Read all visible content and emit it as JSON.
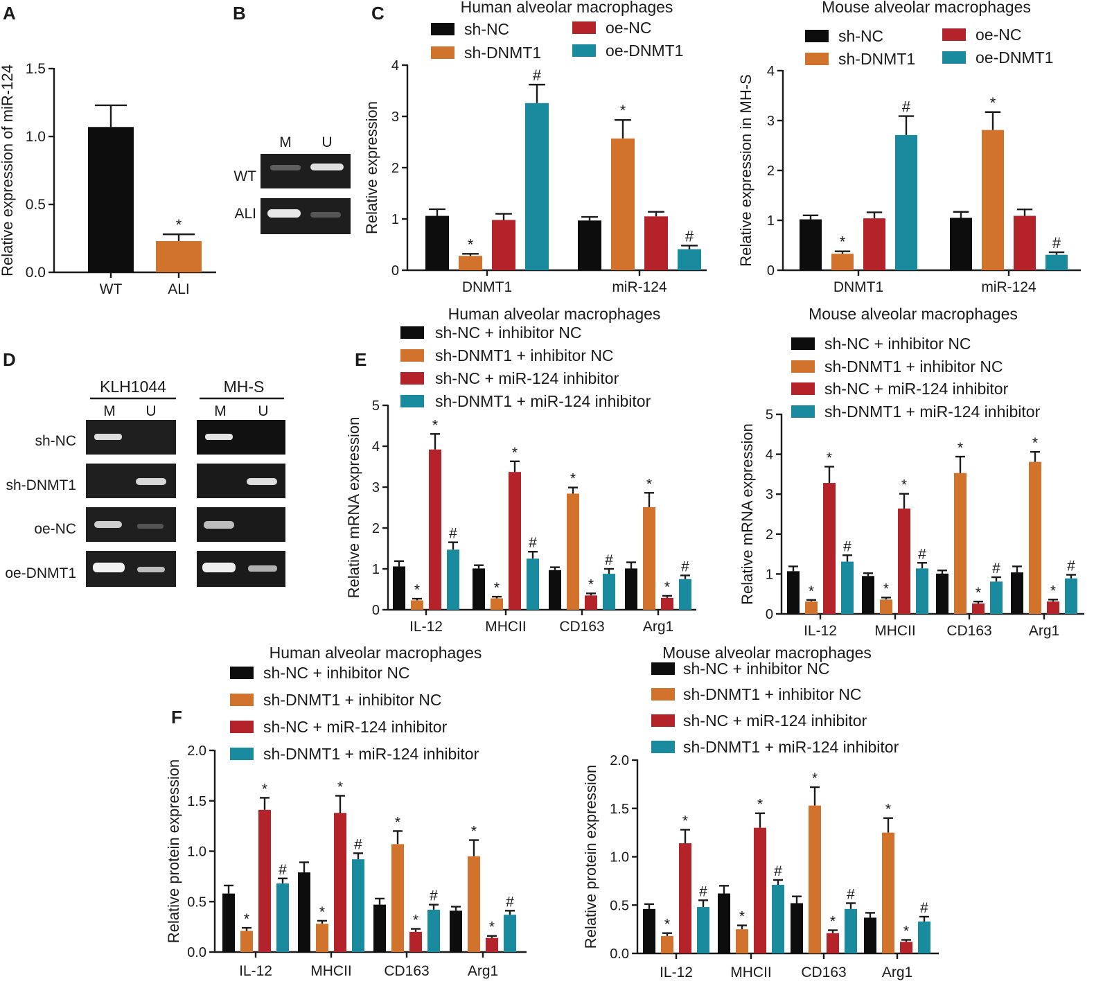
{
  "colors": {
    "black": "#0d0d0d",
    "orange": "#d2732d",
    "red": "#b5232a",
    "teal": "#1a8b9e"
  },
  "panel_labels": {
    "a": "A",
    "b": "B",
    "c": "C",
    "d": "D",
    "e": "E",
    "f": "F"
  },
  "gel_b": {
    "col_m": "M",
    "col_u": "U",
    "row_wt": "WT",
    "row_ali": "ALI"
  },
  "gel_d": {
    "group_left": "KLH1044",
    "group_right": "MH-S",
    "col_m": "M",
    "col_u": "U",
    "rows": [
      "sh-NC",
      "sh-DNMT1",
      "oe-NC",
      "oe-DNMT1"
    ]
  },
  "chart_data": [
    {
      "id": "A",
      "type": "bar",
      "title": "",
      "xlabel": "",
      "ylabel": "Relative expression of miR-124",
      "ylim": [
        0,
        1.5
      ],
      "yticks": [
        "0.0",
        "0.5",
        "1.0",
        "1.5"
      ],
      "ytick_values": [
        0,
        0.5,
        1.0,
        1.5
      ],
      "categories": [
        "WT",
        "ALI"
      ],
      "series": [
        {
          "name": "",
          "values": [
            1.07,
            0.23
          ],
          "errors": [
            0.16,
            0.05
          ],
          "marks": [
            "",
            "*"
          ]
        }
      ]
    },
    {
      "id": "C1",
      "type": "bar",
      "title": "Human alveolar macrophages",
      "xlabel": "",
      "ylabel": "Relative expression",
      "ylim": [
        0,
        4
      ],
      "yticks": [
        "0",
        "1",
        "2",
        "3",
        "4"
      ],
      "ytick_values": [
        0,
        1,
        2,
        3,
        4
      ],
      "categories": [
        "DNMT1",
        "miR-124"
      ],
      "series": [
        {
          "name": "sh-NC",
          "values": [
            1.06,
            0.97
          ],
          "errors": [
            0.13,
            0.07
          ],
          "marks": [
            "",
            ""
          ]
        },
        {
          "name": "sh-DNMT1",
          "values": [
            0.28,
            2.57
          ],
          "errors": [
            0.04,
            0.36
          ],
          "marks": [
            "*",
            "*"
          ]
        },
        {
          "name": "oe-NC",
          "values": [
            0.98,
            1.05
          ],
          "errors": [
            0.12,
            0.09
          ],
          "marks": [
            "",
            ""
          ]
        },
        {
          "name": "oe-DNMT1",
          "values": [
            3.26,
            0.41
          ],
          "errors": [
            0.36,
            0.07
          ],
          "marks": [
            "#",
            "#"
          ]
        }
      ]
    },
    {
      "id": "C2",
      "type": "bar",
      "title": "Mouse alveolar macrophages",
      "xlabel": "",
      "ylabel": "Relative expression in MH-S",
      "ylim": [
        0,
        4
      ],
      "yticks": [
        "0",
        "1",
        "2",
        "3",
        "4"
      ],
      "ytick_values": [
        0,
        1,
        2,
        3,
        4
      ],
      "categories": [
        "DNMT1",
        "miR-124"
      ],
      "series": [
        {
          "name": "sh-NC",
          "values": [
            1.02,
            1.05
          ],
          "errors": [
            0.08,
            0.12
          ],
          "marks": [
            "",
            ""
          ]
        },
        {
          "name": "sh-DNMT1",
          "values": [
            0.33,
            2.81
          ],
          "errors": [
            0.05,
            0.36
          ],
          "marks": [
            "*",
            "*"
          ]
        },
        {
          "name": "oe-NC",
          "values": [
            1.04,
            1.09
          ],
          "errors": [
            0.12,
            0.13
          ],
          "marks": [
            "",
            ""
          ]
        },
        {
          "name": "oe-DNMT1",
          "values": [
            2.71,
            0.31
          ],
          "errors": [
            0.38,
            0.05
          ],
          "marks": [
            "#",
            "#"
          ]
        }
      ]
    },
    {
      "id": "E1",
      "type": "bar",
      "title": "Human alveolar macrophages",
      "xlabel": "",
      "ylabel": "Relative mRNA expression",
      "ylim": [
        0,
        5
      ],
      "yticks": [
        "0",
        "1",
        "2",
        "3",
        "4",
        "5"
      ],
      "ytick_values": [
        0,
        1,
        2,
        3,
        4,
        5
      ],
      "categories": [
        "IL-12",
        "MHCII",
        "CD163",
        "Arg1"
      ],
      "series": [
        {
          "name": "sh-NC + inhibitor NC",
          "values": [
            1.06,
            1.01,
            0.97,
            1.01
          ],
          "errors": [
            0.13,
            0.08,
            0.07,
            0.15
          ],
          "marks": [
            "",
            "",
            "",
            ""
          ]
        },
        {
          "name": "sh-DNMT1 + inhibitor NC",
          "values": [
            0.23,
            0.28,
            2.84,
            2.51
          ],
          "errors": [
            0.04,
            0.04,
            0.15,
            0.35
          ],
          "marks": [
            "*",
            "*",
            "*",
            "*"
          ]
        },
        {
          "name": "sh-NC + miR-124 inhibitor",
          "values": [
            3.92,
            3.37,
            0.35,
            0.29
          ],
          "errors": [
            0.38,
            0.26,
            0.05,
            0.05
          ],
          "marks": [
            "*",
            "*",
            "*",
            "*"
          ]
        },
        {
          "name": "sh-DNMT1 + miR-124 inhibitor",
          "values": [
            1.47,
            1.25,
            0.88,
            0.75
          ],
          "errors": [
            0.18,
            0.17,
            0.12,
            0.09
          ],
          "marks": [
            "#",
            "#",
            "#",
            "#"
          ]
        }
      ]
    },
    {
      "id": "E2",
      "type": "bar",
      "title": "Mouse alveolar macrophages",
      "xlabel": "",
      "ylabel": "Relative mRNA expression",
      "ylim": [
        0,
        5
      ],
      "yticks": [
        "0",
        "1",
        "2",
        "3",
        "4",
        "5"
      ],
      "ytick_values": [
        0,
        1,
        2,
        3,
        4,
        5
      ],
      "categories": [
        "IL-12",
        "MHCII",
        "CD163",
        "Arg1"
      ],
      "series": [
        {
          "name": "sh-NC + inhibitor NC",
          "values": [
            1.07,
            0.95,
            1.01,
            1.04
          ],
          "errors": [
            0.12,
            0.07,
            0.08,
            0.15
          ],
          "marks": [
            "",
            "",
            "",
            ""
          ]
        },
        {
          "name": "sh-DNMT1 + inhibitor NC",
          "values": [
            0.31,
            0.36,
            3.53,
            3.81
          ],
          "errors": [
            0.04,
            0.05,
            0.41,
            0.25
          ],
          "marks": [
            "*",
            "*",
            "*",
            "*"
          ]
        },
        {
          "name": "sh-NC + miR-124 inhibitor",
          "values": [
            3.28,
            2.64,
            0.26,
            0.31
          ],
          "errors": [
            0.41,
            0.37,
            0.05,
            0.05
          ],
          "marks": [
            "*",
            "*",
            "*",
            "*"
          ]
        },
        {
          "name": "sh-DNMT1 + miR-124 inhibitor",
          "values": [
            1.31,
            1.14,
            0.81,
            0.89
          ],
          "errors": [
            0.16,
            0.14,
            0.11,
            0.09
          ],
          "marks": [
            "#",
            "#",
            "#",
            "#"
          ]
        }
      ]
    },
    {
      "id": "F1",
      "type": "bar",
      "title": "Human alveolar macrophages",
      "xlabel": "",
      "ylabel": "Relative protein expression",
      "ylim": [
        0,
        2
      ],
      "yticks": [
        "0.0",
        "0.5",
        "1.0",
        "1.5",
        "2.0"
      ],
      "ytick_values": [
        0,
        0.5,
        1.0,
        1.5,
        2.0
      ],
      "categories": [
        "IL-12",
        "MHCII",
        "CD163",
        "Arg1"
      ],
      "series": [
        {
          "name": "sh-NC + inhibitor NC",
          "values": [
            0.58,
            0.79,
            0.47,
            0.41
          ],
          "errors": [
            0.08,
            0.1,
            0.06,
            0.04
          ],
          "marks": [
            "",
            "",
            "",
            ""
          ]
        },
        {
          "name": "sh-DNMT1 + inhibitor NC",
          "values": [
            0.21,
            0.28,
            1.07,
            0.95
          ],
          "errors": [
            0.03,
            0.03,
            0.13,
            0.16
          ],
          "marks": [
            "*",
            "*",
            "*",
            "*"
          ]
        },
        {
          "name": "sh-NC + miR-124 inhibitor",
          "values": [
            1.41,
            1.38,
            0.2,
            0.14
          ],
          "errors": [
            0.12,
            0.17,
            0.03,
            0.02
          ],
          "marks": [
            "*",
            "*",
            "*",
            "*"
          ]
        },
        {
          "name": "sh-DNMT1 + miR-124 inhibitor",
          "values": [
            0.68,
            0.92,
            0.42,
            0.37
          ],
          "errors": [
            0.05,
            0.06,
            0.05,
            0.04
          ],
          "marks": [
            "#",
            "#",
            "#",
            "#"
          ]
        }
      ]
    },
    {
      "id": "F2",
      "type": "bar",
      "title": "Mouse alveolar macrophages",
      "xlabel": "",
      "ylabel": "Relative protein expression",
      "ylim": [
        0,
        2
      ],
      "yticks": [
        "0.0",
        "0.5",
        "1.0",
        "1.5",
        "2.0"
      ],
      "ytick_values": [
        0,
        0.5,
        1.0,
        1.5,
        2.0
      ],
      "categories": [
        "IL-12",
        "MHCII",
        "CD163",
        "Arg1"
      ],
      "series": [
        {
          "name": "sh-NC + inhibitor NC",
          "values": [
            0.46,
            0.62,
            0.52,
            0.37
          ],
          "errors": [
            0.05,
            0.08,
            0.07,
            0.05
          ],
          "marks": [
            "",
            "",
            "",
            ""
          ]
        },
        {
          "name": "sh-DNMT1 + inhibitor NC",
          "values": [
            0.18,
            0.25,
            1.53,
            1.25
          ],
          "errors": [
            0.03,
            0.04,
            0.19,
            0.15
          ],
          "marks": [
            "*",
            "*",
            "*",
            "*"
          ]
        },
        {
          "name": "sh-NC + miR-124 inhibitor",
          "values": [
            1.14,
            1.3,
            0.21,
            0.12
          ],
          "errors": [
            0.14,
            0.15,
            0.03,
            0.02
          ],
          "marks": [
            "*",
            "*",
            "*",
            "*"
          ]
        },
        {
          "name": "sh-DNMT1 + miR-124 inhibitor",
          "values": [
            0.48,
            0.71,
            0.46,
            0.33
          ],
          "errors": [
            0.07,
            0.05,
            0.06,
            0.05
          ],
          "marks": [
            "#",
            "#",
            "#",
            "#"
          ]
        }
      ]
    }
  ]
}
